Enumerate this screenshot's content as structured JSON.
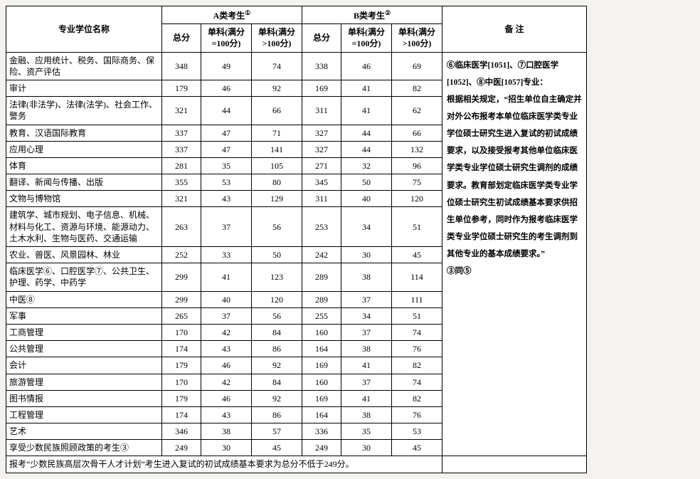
{
  "headers": {
    "name": "专业学位名称",
    "groupA": "A类考生",
    "supA": "①",
    "groupB": "B类考生",
    "supB": "②",
    "total": "总分",
    "sub1": "单科(满分=100分)",
    "sub2": "单科(满分>100分)",
    "remarks": "备 注"
  },
  "rows": [
    {
      "name": "金融、应用统计、税务、国际商务、保险、资产评估",
      "a": [
        348,
        49,
        74
      ],
      "b": [
        338,
        46,
        69
      ]
    },
    {
      "name": "审计",
      "a": [
        179,
        46,
        92
      ],
      "b": [
        169,
        41,
        82
      ]
    },
    {
      "name": "法律(非法学)、法律(法学)、社会工作、警务",
      "a": [
        321,
        44,
        66
      ],
      "b": [
        311,
        41,
        62
      ]
    },
    {
      "name": "教育、汉语国际教育",
      "a": [
        337,
        47,
        71
      ],
      "b": [
        327,
        44,
        66
      ]
    },
    {
      "name": "应用心理",
      "a": [
        337,
        47,
        141
      ],
      "b": [
        327,
        44,
        132
      ]
    },
    {
      "name": "体育",
      "a": [
        281,
        35,
        105
      ],
      "b": [
        271,
        32,
        96
      ]
    },
    {
      "name": "翻译、新闻与传播、出版",
      "a": [
        355,
        53,
        80
      ],
      "b": [
        345,
        50,
        75
      ]
    },
    {
      "name": "文物与博物馆",
      "a": [
        321,
        43,
        129
      ],
      "b": [
        311,
        40,
        120
      ]
    },
    {
      "name": "建筑学、城市规划、电子信息、机械、材料与化工、资源与环境、能源动力、土木水利、生物与医药、交通运输",
      "a": [
        263,
        37,
        56
      ],
      "b": [
        253,
        34,
        51
      ]
    },
    {
      "name": "农业、兽医、风景园林、林业",
      "a": [
        252,
        33,
        50
      ],
      "b": [
        242,
        30,
        45
      ]
    },
    {
      "name": "临床医学⑥、口腔医学⑦、公共卫生、护理、药学、中药学",
      "a": [
        299,
        41,
        123
      ],
      "b": [
        289,
        38,
        114
      ]
    },
    {
      "name": "中医⑧",
      "a": [
        299,
        40,
        120
      ],
      "b": [
        289,
        37,
        111
      ]
    },
    {
      "name": "军事",
      "a": [
        265,
        37,
        56
      ],
      "b": [
        255,
        34,
        51
      ]
    },
    {
      "name": "工商管理",
      "a": [
        170,
        42,
        84
      ],
      "b": [
        160,
        37,
        74
      ]
    },
    {
      "name": "公共管理",
      "a": [
        174,
        43,
        86
      ],
      "b": [
        164,
        38,
        76
      ]
    },
    {
      "name": "会计",
      "a": [
        179,
        46,
        92
      ],
      "b": [
        169,
        41,
        82
      ]
    },
    {
      "name": "旅游管理",
      "a": [
        170,
        42,
        84
      ],
      "b": [
        160,
        37,
        74
      ]
    },
    {
      "name": "图书情报",
      "a": [
        179,
        46,
        92
      ],
      "b": [
        169,
        41,
        82
      ]
    },
    {
      "name": "工程管理",
      "a": [
        174,
        43,
        86
      ],
      "b": [
        164,
        38,
        76
      ]
    },
    {
      "name": "艺术",
      "a": [
        346,
        38,
        57
      ],
      "b": [
        336,
        35,
        53
      ]
    },
    {
      "name": "享受少数民族照顾政策的考生③",
      "a": [
        249,
        30,
        45
      ],
      "b": [
        249,
        30,
        45
      ]
    }
  ],
  "footer": "报考“少数民族高层次骨干人才计划”考生进入复试的初试成绩基本要求为总分不低于249分。",
  "remarks_text": "⑥临床医学[1051]、⑦口腔医学[1052]、⑧中医[1057]专业：\n根据相关规定，“招生单位自主确定并对外公布报考本单位临床医学类专业学位硕士研究生进入复试的初试成绩要求，以及接受报考其他单位临床医学类专业学位硕士研究生调剂的成绩要求。教育部划定临床医学类专业学位硕士研究生初试成绩基本要求供招生单位参考，同时作为报考临床医学类专业学位硕士研究生的考生调剂到其他专业的基本成绩要求。”\n③同⑤"
}
